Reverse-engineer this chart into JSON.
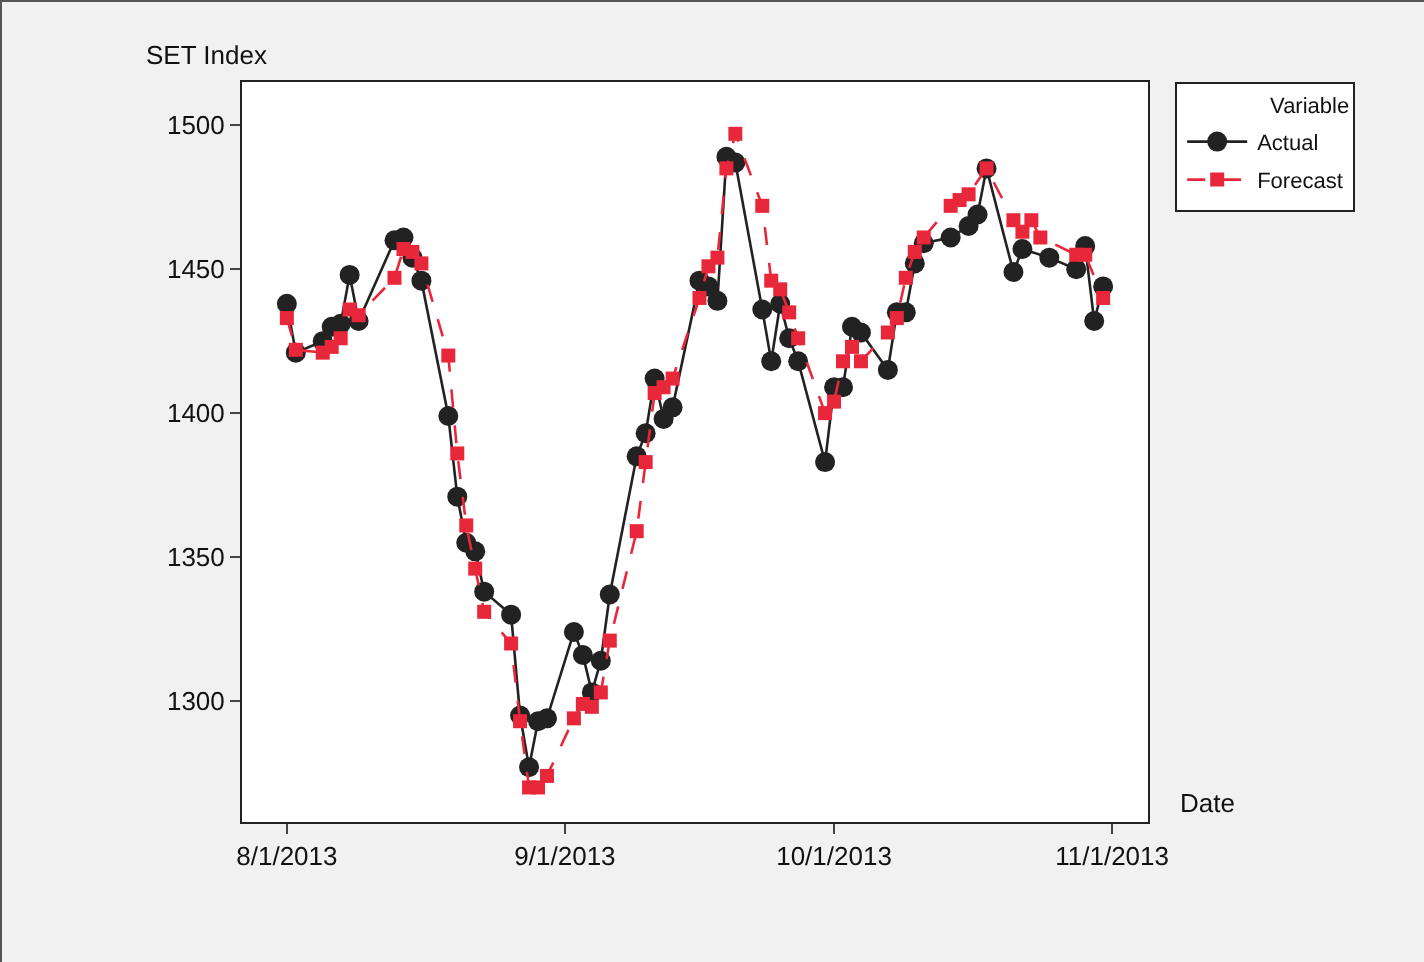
{
  "chart_data": {
    "type": "line",
    "xlabel": "Date",
    "ylabel": "SET Index",
    "legend_title": "Variable",
    "legend": "top right",
    "grid": false,
    "xlim": [
      "2013-07-27",
      "2013-11-05"
    ],
    "ylim": [
      1258,
      1515
    ],
    "yticks": [
      1300,
      1350,
      1400,
      1450,
      1500
    ],
    "xticks": [
      {
        "value": "2013-08-01",
        "label": "8/1/2013"
      },
      {
        "value": "2013-09-01",
        "label": "9/1/2013"
      },
      {
        "value": "2013-10-01",
        "label": "10/1/2013"
      },
      {
        "value": "2013-11-01",
        "label": "11/1/2013"
      }
    ],
    "series": [
      {
        "name": "Actual",
        "color": "#222222",
        "marker": "circle",
        "line_style": "solid",
        "x": [
          "2013-08-01",
          "2013-08-02",
          "2013-08-05",
          "2013-08-06",
          "2013-08-07",
          "2013-08-08",
          "2013-08-09",
          "2013-08-13",
          "2013-08-14",
          "2013-08-15",
          "2013-08-16",
          "2013-08-19",
          "2013-08-20",
          "2013-08-21",
          "2013-08-22",
          "2013-08-23",
          "2013-08-26",
          "2013-08-27",
          "2013-08-28",
          "2013-08-29",
          "2013-08-30",
          "2013-09-02",
          "2013-09-03",
          "2013-09-04",
          "2013-09-05",
          "2013-09-06",
          "2013-09-09",
          "2013-09-10",
          "2013-09-11",
          "2013-09-12",
          "2013-09-13",
          "2013-09-16",
          "2013-09-17",
          "2013-09-18",
          "2013-09-19",
          "2013-09-20",
          "2013-09-23",
          "2013-09-24",
          "2013-09-25",
          "2013-09-26",
          "2013-09-27",
          "2013-09-30",
          "2013-10-01",
          "2013-10-02",
          "2013-10-03",
          "2013-10-04",
          "2013-10-07",
          "2013-10-08",
          "2013-10-09",
          "2013-10-10",
          "2013-10-11",
          "2013-10-14",
          "2013-10-16",
          "2013-10-17",
          "2013-10-18",
          "2013-10-21",
          "2013-10-22",
          "2013-10-25",
          "2013-10-28",
          "2013-10-29",
          "2013-10-30",
          "2013-10-31"
        ],
        "values": [
          1438,
          1421,
          1425,
          1430,
          1431,
          1448,
          1432,
          1460,
          1461,
          1454,
          1446,
          1399,
          1371,
          1355,
          1352,
          1338,
          1330,
          1295,
          1277,
          1293,
          1294,
          1324,
          1316,
          1303,
          1314,
          1337,
          1385,
          1393,
          1412,
          1398,
          1402,
          1446,
          1444,
          1439,
          1489,
          1487,
          1436,
          1418,
          1438,
          1426,
          1418,
          1383,
          1409,
          1409,
          1430,
          1428,
          1415,
          1435,
          1435,
          1452,
          1459,
          1461,
          1465,
          1469,
          1485,
          1449,
          1457,
          1454,
          1450,
          1458,
          1432,
          1444
        ]
      },
      {
        "name": "Forecast",
        "color": "#e8283a",
        "marker": "square",
        "line_style": "dashed",
        "x": [
          "2013-08-01",
          "2013-08-02",
          "2013-08-05",
          "2013-08-06",
          "2013-08-07",
          "2013-08-08",
          "2013-08-09",
          "2013-08-13",
          "2013-08-14",
          "2013-08-15",
          "2013-08-16",
          "2013-08-19",
          "2013-08-20",
          "2013-08-21",
          "2013-08-22",
          "2013-08-23",
          "2013-08-26",
          "2013-08-27",
          "2013-08-28",
          "2013-08-29",
          "2013-08-30",
          "2013-09-02",
          "2013-09-03",
          "2013-09-04",
          "2013-09-05",
          "2013-09-06",
          "2013-09-09",
          "2013-09-10",
          "2013-09-11",
          "2013-09-12",
          "2013-09-13",
          "2013-09-16",
          "2013-09-17",
          "2013-09-18",
          "2013-09-19",
          "2013-09-20",
          "2013-09-23",
          "2013-09-24",
          "2013-09-25",
          "2013-09-26",
          "2013-09-27",
          "2013-09-30",
          "2013-10-01",
          "2013-10-02",
          "2013-10-03",
          "2013-10-04",
          "2013-10-07",
          "2013-10-08",
          "2013-10-09",
          "2013-10-10",
          "2013-10-11",
          "2013-10-14",
          "2013-10-15",
          "2013-10-16",
          "2013-10-18",
          "2013-10-21",
          "2013-10-22",
          "2013-10-23",
          "2013-10-24",
          "2013-10-28",
          "2013-10-29",
          "2013-10-31"
        ],
        "values": [
          1433,
          1422,
          1421,
          1423,
          1426,
          1436,
          1434,
          1447,
          1457,
          1456,
          1452,
          1420,
          1386,
          1361,
          1346,
          1331,
          1320,
          1293,
          1270,
          1270,
          1274,
          1294,
          1299,
          1298,
          1303,
          1321,
          1359,
          1383,
          1407,
          1409,
          1412,
          1440,
          1451,
          1454,
          1485,
          1497,
          1472,
          1446,
          1443,
          1435,
          1426,
          1400,
          1404,
          1418,
          1423,
          1418,
          1428,
          1433,
          1447,
          1456,
          1461,
          1472,
          1474,
          1476,
          1485,
          1467,
          1463,
          1467,
          1461,
          1455,
          1455,
          1440
        ]
      }
    ]
  }
}
